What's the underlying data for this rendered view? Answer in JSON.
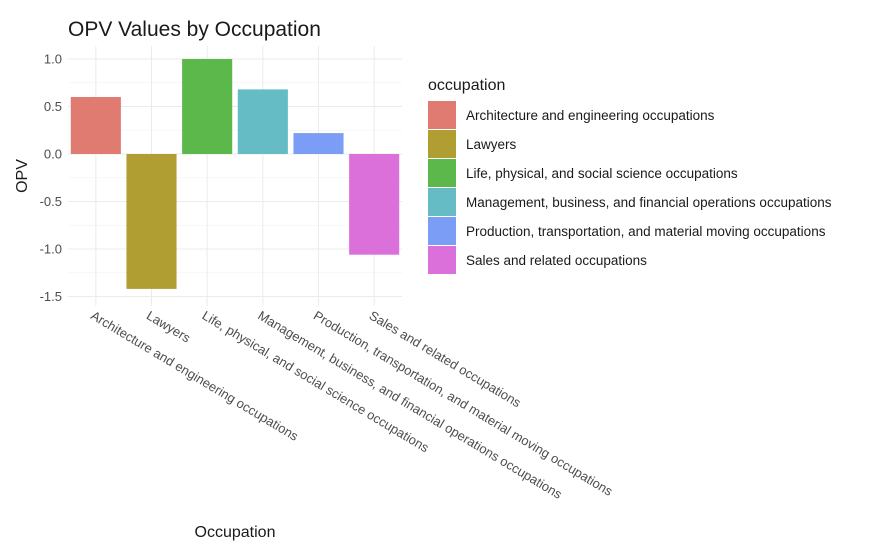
{
  "chart_data": {
    "type": "bar",
    "title": "OPV Values by Occupation",
    "xlabel": "Occupation",
    "ylabel": "OPV",
    "categories": [
      "Architecture and engineering occupations",
      "Lawyers",
      "Life, physical, and social science occupations",
      "Management, business, and financial operations occupations",
      "Production, transportation, and material moving occupations",
      "Sales and related occupations"
    ],
    "values": [
      0.6,
      -1.42,
      1.0,
      0.68,
      0.22,
      -1.06
    ],
    "colors": [
      "#E07B72",
      "#B09E32",
      "#5DB84C",
      "#66BCC4",
      "#7B9DF6",
      "#DC70DB"
    ],
    "ylim": [
      -1.5,
      1.0
    ],
    "yticks": [
      "-1.5",
      "-1.0",
      "-0.5",
      "0.0",
      "0.5",
      "1.0"
    ],
    "grid": true,
    "legend": {
      "title": "occupation",
      "position": "right",
      "entries": [
        "Architecture and engineering occupations",
        "Lawyers",
        "Life, physical, and social science occupations",
        "Management, business, and financial operations occupations",
        "Production, transportation, and material moving occupations",
        "Sales and related occupations"
      ]
    }
  }
}
